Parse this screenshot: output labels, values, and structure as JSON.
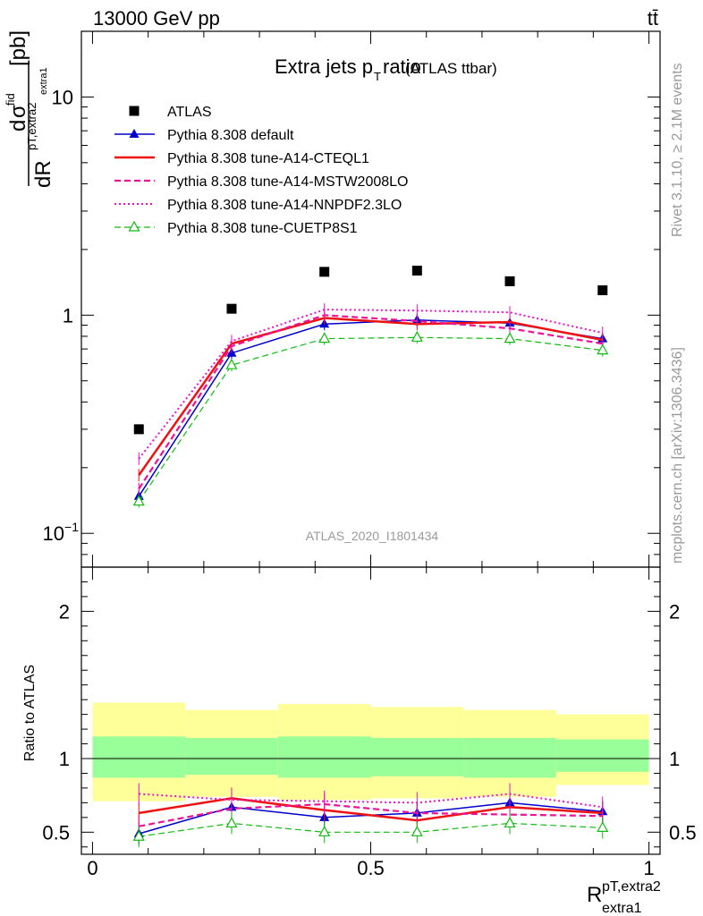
{
  "header": {
    "left": "13000 GeV pp",
    "right": "tt̄"
  },
  "side_labels": {
    "rivet": "Rivet 3.1.10, ≥ 2.1M events",
    "mcplots": "mcplots.cern.ch [arXiv:1306.3436]"
  },
  "chart_data": {
    "type": "line",
    "title": "Extra jets p",
    "title_sub": "T",
    "title_suffix": " ratio",
    "title_note": "(ATLAS ttbar)",
    "analysis": "ATLAS_2020_I1801434",
    "xlabel": "R",
    "xlabel_sup": "pT,extra2",
    "xlabel_sub": "extra1",
    "ylabel": "dσ^fid / dR [pb]",
    "ylabel_parts": {
      "num_d": "d",
      "num_sigma": "σ",
      "num_sup": "fid",
      "den": "dR",
      "den_sup": "pT,extra2",
      "den_sub": "extra1",
      "unit": "[pb]"
    },
    "xlim": [
      -0.02,
      1.02
    ],
    "ylim": [
      0.07,
      20
    ],
    "yscale": "log",
    "x_ticks": [
      "0",
      "0.5",
      "1"
    ],
    "y_ticks_main": [
      {
        "base": "10",
        "exp": "−1"
      },
      {
        "base": "1",
        "exp": ""
      },
      {
        "base": "10",
        "exp": ""
      }
    ],
    "ratio_ylabel": "Ratio to ATLAS",
    "ratio_ylim": [
      0.35,
      2.3
    ],
    "ratio_ticks": [
      "0.5",
      "1",
      "2"
    ],
    "bins": [
      [
        0.0,
        0.1667
      ],
      [
        0.1667,
        0.3333
      ],
      [
        0.3333,
        0.5
      ],
      [
        0.5,
        0.6667
      ],
      [
        0.6667,
        0.8333
      ],
      [
        0.8333,
        1.0
      ]
    ],
    "x": [
      0.0833,
      0.25,
      0.4167,
      0.5833,
      0.75,
      0.9167
    ],
    "data": {
      "name": "ATLAS",
      "values": [
        0.3,
        1.07,
        1.58,
        1.6,
        1.43,
        1.3
      ]
    },
    "band_inner": [
      [
        0.87,
        1.15
      ],
      [
        0.89,
        1.14
      ],
      [
        0.87,
        1.15
      ],
      [
        0.88,
        1.14
      ],
      [
        0.87,
        1.14
      ],
      [
        0.91,
        1.13
      ]
    ],
    "band_outer": [
      [
        0.71,
        1.38
      ],
      [
        0.74,
        1.33
      ],
      [
        0.72,
        1.37
      ],
      [
        0.73,
        1.35
      ],
      [
        0.74,
        1.33
      ],
      [
        0.82,
        1.3
      ]
    ],
    "series": [
      {
        "name": "Pythia 8.308 default",
        "color": "#0000cc",
        "style": "solid",
        "width": 1.5,
        "marker": "triangle-filled",
        "values": [
          0.148,
          0.67,
          0.91,
          0.95,
          0.92,
          0.78
        ],
        "ratio": [
          0.49,
          0.67,
          0.6,
          0.63,
          0.7,
          0.64
        ]
      },
      {
        "name": "Pythia 8.308 tune-A14-CTEQL1",
        "color": "#ee1111",
        "style": "solid",
        "width": 2.5,
        "marker": "none",
        "values": [
          0.185,
          0.74,
          0.97,
          0.91,
          0.93,
          0.77
        ],
        "ratio": [
          0.63,
          0.73,
          0.65,
          0.58,
          0.67,
          0.63
        ]
      },
      {
        "name": "Pythia 8.308 tune-A14-MSTW2008LO",
        "color": "#ee1199",
        "style": "dashed",
        "width": 2.2,
        "marker": "none",
        "values": [
          0.16,
          0.72,
          1.0,
          0.94,
          0.87,
          0.74
        ],
        "ratio": [
          0.54,
          0.66,
          0.69,
          0.63,
          0.62,
          0.61
        ]
      },
      {
        "name": "Pythia 8.308 tune-A14-NNPDF2.3LO",
        "color": "#ee11cc",
        "style": "dotted",
        "width": 2.0,
        "marker": "none",
        "values": [
          0.22,
          0.76,
          1.06,
          1.05,
          1.03,
          0.83
        ],
        "ratio": [
          0.76,
          0.72,
          0.71,
          0.7,
          0.76,
          0.67
        ]
      },
      {
        "name": "Pythia 8.308 tune-CUETP8S1",
        "color": "#11bb11",
        "style": "dashed",
        "width": 1.2,
        "marker": "triangle-open",
        "values": [
          0.14,
          0.59,
          0.78,
          0.79,
          0.78,
          0.69
        ],
        "ratio": [
          0.47,
          0.56,
          0.5,
          0.5,
          0.56,
          0.53
        ]
      }
    ],
    "legend_position": "top-left"
  }
}
